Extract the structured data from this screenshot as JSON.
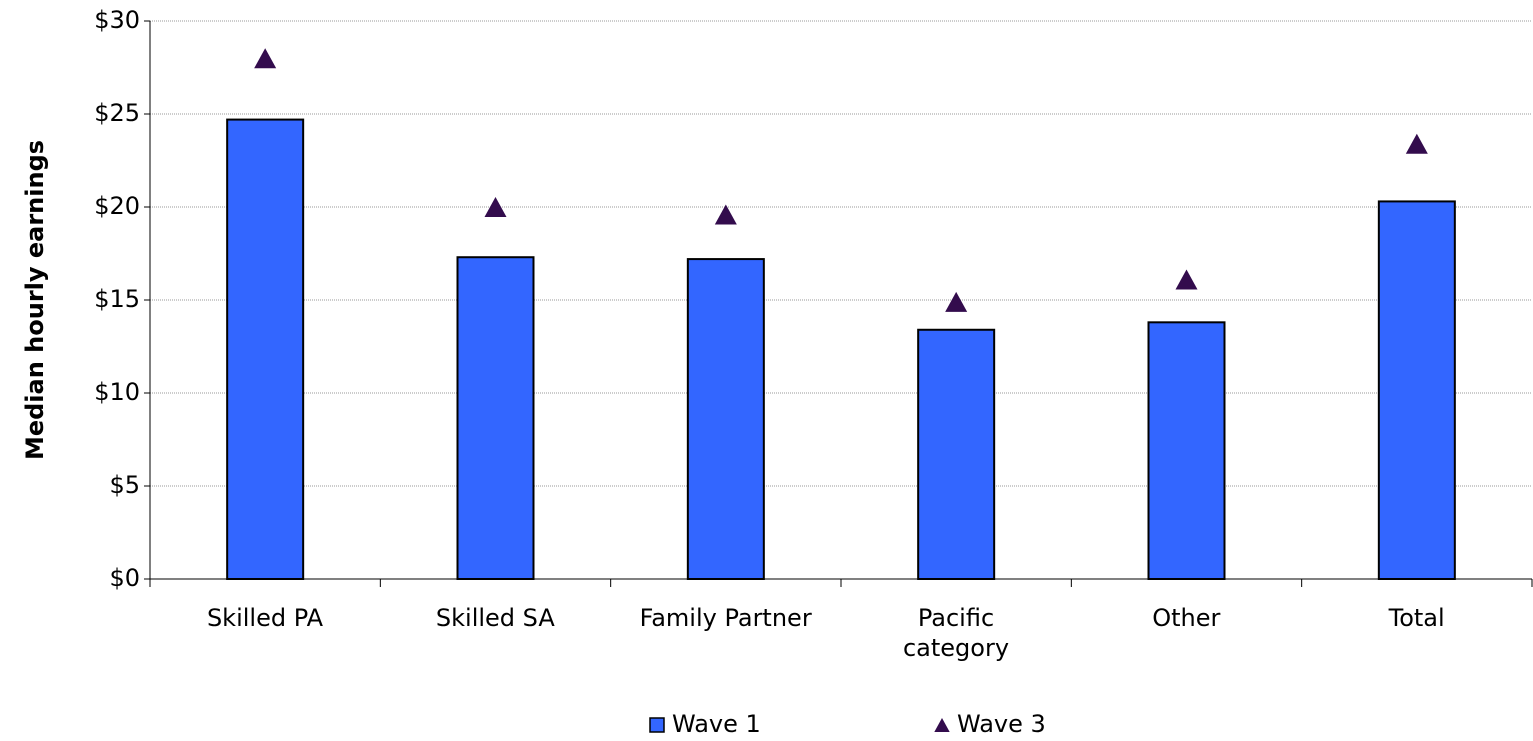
{
  "chart_data": {
    "type": "bar",
    "y_label": "Median hourly earnings",
    "categories": [
      "Skilled PA",
      "Skilled SA",
      "Family Partner",
      "Pacific\ncategory",
      "Other",
      "Total"
    ],
    "series": [
      {
        "name": "Wave 1",
        "type": "bar",
        "color": "#3366ff",
        "values": [
          24.7,
          17.3,
          17.2,
          13.4,
          13.8,
          20.3
        ]
      },
      {
        "name": "Wave 3",
        "type": "marker",
        "color": "#330c4d",
        "values": [
          28.0,
          20.0,
          19.6,
          14.9,
          16.1,
          23.4
        ]
      }
    ],
    "ylim": [
      0,
      30
    ],
    "yticks": [
      {
        "value": 0,
        "label": "$0"
      },
      {
        "value": 5,
        "label": "$5"
      },
      {
        "value": 10,
        "label": "$10"
      },
      {
        "value": 15,
        "label": "$15"
      },
      {
        "value": 20,
        "label": "$20"
      },
      {
        "value": 25,
        "label": "$25"
      },
      {
        "value": 30,
        "label": "$30"
      }
    ],
    "grid": true,
    "legend": "bottom"
  }
}
